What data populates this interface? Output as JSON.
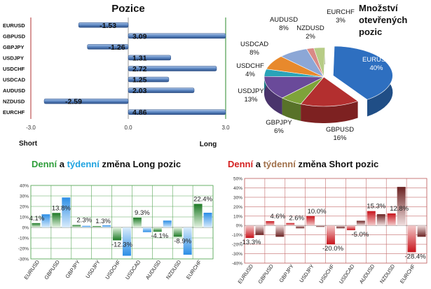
{
  "chart_data": [
    {
      "type": "bar",
      "orientation": "horizontal",
      "title": "Pozice",
      "categories": [
        "EURUSD",
        "GBPUSD",
        "GBPJPY",
        "USDJPY",
        "USDCHF",
        "USDCAD",
        "AUDUSD",
        "NZDUSD",
        "EURCHF"
      ],
      "values": [
        -1.53,
        3.09,
        -1.26,
        1.31,
        2.72,
        1.25,
        2.03,
        -2.59,
        4.86
      ],
      "value_labels": [
        "-1.53",
        "3.09",
        "-1.26",
        "1.31",
        "2.72",
        "1.25",
        "2.03",
        "-2.59",
        "4.86"
      ],
      "xlim": [
        -3.0,
        3.0
      ],
      "ticks": [
        "-3.0",
        "0.0",
        "3.0"
      ],
      "left_label": "Short",
      "right_label": "Long"
    },
    {
      "type": "pie",
      "title_lines": [
        "Množství",
        "otevřených",
        "pozic"
      ],
      "slices": [
        {
          "label": "EURUSD",
          "percent": 40,
          "pct_label": "40%",
          "color": "#2e6fc0"
        },
        {
          "label": "GBPUSD",
          "percent": 16,
          "pct_label": "16%",
          "color": "#b32f2f"
        },
        {
          "label": "GBPJPY",
          "percent": 6,
          "pct_label": "6%",
          "color": "#7ea33a"
        },
        {
          "label": "USDJPY",
          "percent": 13,
          "pct_label": "13%",
          "color": "#6a4a9a"
        },
        {
          "label": "USDCHF",
          "percent": 4,
          "pct_label": "4%",
          "color": "#2aa3b8"
        },
        {
          "label": "USDCAD",
          "percent": 8,
          "pct_label": "8%",
          "color": "#e8892c"
        },
        {
          "label": "AUDUSD",
          "percent": 8,
          "pct_label": "8%",
          "color": "#8ca7d6"
        },
        {
          "label": "NZDUSD",
          "percent": 2,
          "pct_label": "2%",
          "color": "#d98a86"
        },
        {
          "label": "EURCHF",
          "percent": 3,
          "pct_label": "3%",
          "color": "#b7cc86"
        }
      ]
    },
    {
      "type": "bar",
      "title_parts": [
        {
          "text": "Denní",
          "color": "#2e9e3a"
        },
        {
          "text": " a ",
          "color": "#111111"
        },
        {
          "text": "týdenní",
          "color": "#1ea3e0"
        },
        {
          "text": " změna Long pozic",
          "color": "#111111"
        }
      ],
      "categories": [
        "EURUSD",
        "GBPUSD",
        "GBPJPY",
        "USDJPY",
        "USDCHF",
        "USDCAD",
        "AUDUSD",
        "NZDUSD",
        "EURCHF"
      ],
      "series": [
        {
          "role": "denní",
          "color": "#3a9a3a",
          "values": [
            4.1,
            13.8,
            2.3,
            1.3,
            -12.3,
            9.3,
            -4.1,
            -8.9,
            22.4
          ]
        },
        {
          "role": "týdenní",
          "color": "#2f8fe0",
          "values": [
            12.5,
            28.5,
            1.5,
            2.0,
            -27.0,
            -4.5,
            6.5,
            -26.0,
            14.0
          ]
        }
      ],
      "data_labels": [
        "4.1%",
        "13.8%",
        "2.3%",
        "1.3%",
        "-12.3%",
        "9.3%",
        "-4.1%",
        "-8.9%",
        "22.4%"
      ],
      "ylim": [
        -30,
        40
      ],
      "yticks": [
        "40%",
        "30%",
        "20%",
        "10%",
        "0%",
        "-10%",
        "-20%",
        "-30%"
      ]
    },
    {
      "type": "bar",
      "title_parts": [
        {
          "text": "Denní",
          "color": "#d42020"
        },
        {
          "text": " a ",
          "color": "#111111"
        },
        {
          "text": "týdenní",
          "color": "#a0704a"
        },
        {
          "text": " změna Short pozic",
          "color": "#111111"
        }
      ],
      "categories": [
        "EURUSD",
        "GBPUSD",
        "GBPJPY",
        "USDJPY",
        "USDCHF",
        "USDCAD",
        "AUDUSD",
        "NZDUSD",
        "EURCHF"
      ],
      "series": [
        {
          "role": "denní",
          "color": "#cc1c1c",
          "values": [
            -13.3,
            4.6,
            2.6,
            10.0,
            -20.0,
            -5.0,
            15.3,
            12.8,
            -28.4
          ]
        },
        {
          "role": "týdenní",
          "color": "#9a6a6a",
          "values": [
            -10.0,
            -12.0,
            -3.0,
            -1.5,
            -3.0,
            5.0,
            12.0,
            41.0,
            -12.0
          ]
        }
      ],
      "data_labels": [
        "-13.3%",
        "4.6%",
        "2.6%",
        "10.0%",
        "-20.0%",
        "-5.0%",
        "15.3%",
        "12.8%",
        "-28.4%"
      ],
      "ylim": [
        -40,
        50
      ],
      "yticks": [
        "50%",
        "40%",
        "30%",
        "20%",
        "10%",
        "0%",
        "-10%",
        "-20%",
        "-30%",
        "-40%"
      ]
    }
  ]
}
